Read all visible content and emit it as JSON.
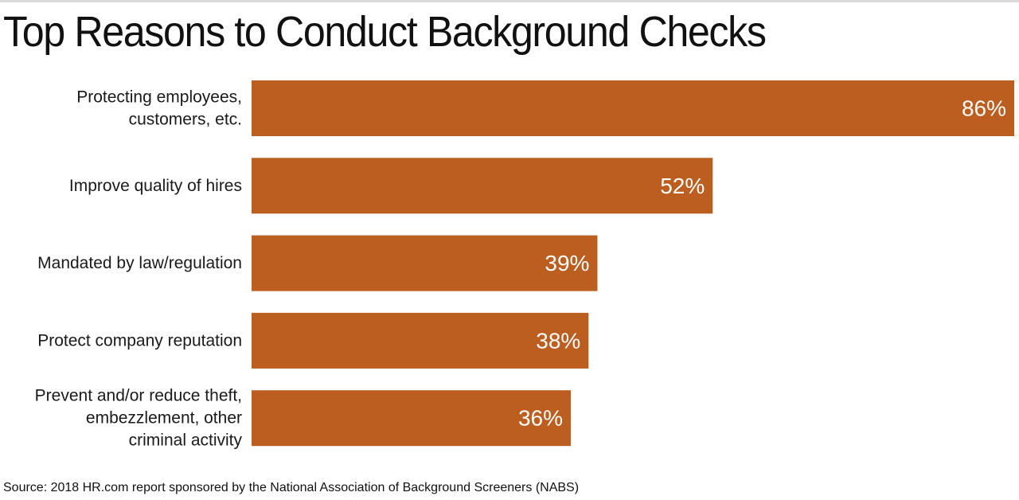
{
  "title": "Top Reasons to Conduct Background Checks",
  "source": "Source: 2018 HR.com report sponsored by the National Association of Background Screeners (NABS)",
  "colors": {
    "bar": "#bb5e1f",
    "value_text": "#ffffff",
    "label_text": "#1a1a1a"
  },
  "chart_data": {
    "type": "bar",
    "orientation": "horizontal",
    "title": "Top Reasons to Conduct Background Checks",
    "xlabel": "",
    "ylabel": "",
    "xlim": [
      0,
      86
    ],
    "grid": false,
    "categories": [
      [
        "Protecting employees,",
        "customers, etc."
      ],
      [
        "Improve quality of hires"
      ],
      [
        "Mandated by law/regulation"
      ],
      [
        "Protect company reputation"
      ],
      [
        "Prevent and/or reduce theft,",
        "embezzlement, other",
        "criminal activity"
      ]
    ],
    "values": [
      86,
      52,
      39,
      38,
      36
    ],
    "data_labels": [
      "86%",
      "52%",
      "39%",
      "38%",
      "36%"
    ],
    "unit": "%"
  }
}
